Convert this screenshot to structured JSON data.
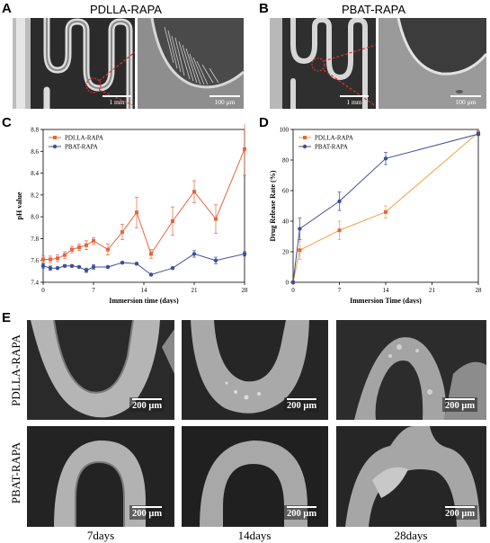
{
  "panels": {
    "A": {
      "letter": "A",
      "title": "PDLLA-RAPA",
      "scale_left": "1 mm",
      "scale_right": "100 μm"
    },
    "B": {
      "letter": "B",
      "title": "PBAT-RAPA",
      "scale_left": "1 mm",
      "scale_right": "100 μm"
    },
    "C": {
      "letter": "C"
    },
    "D": {
      "letter": "D"
    },
    "E": {
      "letter": "E",
      "rows": [
        "PDLLA-RAPA",
        "PBAT-RAPA"
      ],
      "cols": [
        "7days",
        "14days",
        "28days"
      ],
      "scale": "200 μm"
    }
  },
  "chart_data": [
    {
      "type": "line",
      "panel": "C",
      "xlabel": "Immersion time (days)",
      "ylabel": "pH value",
      "xlim": [
        0,
        28
      ],
      "ylim": [
        7.4,
        8.8
      ],
      "xticks": [
        0,
        7,
        14,
        21,
        28
      ],
      "yticks": [
        7.4,
        7.6,
        7.8,
        8.0,
        8.2,
        8.4,
        8.6,
        8.8
      ],
      "legend": "top-left",
      "series": [
        {
          "name": "PDLLA-RAPA",
          "color": "#e8643c",
          "x": [
            0,
            1,
            2,
            3,
            4,
            5,
            6,
            7,
            9,
            11,
            13,
            15,
            18,
            21,
            24,
            28
          ],
          "y": [
            7.61,
            7.61,
            7.62,
            7.65,
            7.7,
            7.72,
            7.74,
            7.78,
            7.7,
            7.86,
            8.04,
            7.66,
            7.96,
            8.23,
            7.98,
            8.62
          ],
          "err": [
            0.03,
            0.03,
            0.03,
            0.03,
            0.03,
            0.03,
            0.04,
            0.03,
            0.05,
            0.07,
            0.14,
            0.04,
            0.13,
            0.1,
            0.13,
            0.24
          ]
        },
        {
          "name": "PBAT-RAPA",
          "color": "#3d4f9a",
          "x": [
            0,
            1,
            2,
            3,
            4,
            5,
            6,
            7,
            9,
            11,
            13,
            15,
            18,
            21,
            24,
            28
          ],
          "y": [
            7.55,
            7.53,
            7.53,
            7.55,
            7.55,
            7.54,
            7.51,
            7.54,
            7.54,
            7.58,
            7.57,
            7.47,
            7.53,
            7.66,
            7.6,
            7.66
          ],
          "err": [
            0.02,
            0.02,
            0.01,
            0.01,
            0.01,
            0.01,
            0.02,
            0.02,
            0.01,
            0.01,
            0.01,
            0.01,
            0.01,
            0.03,
            0.03,
            0.02
          ]
        }
      ]
    },
    {
      "type": "line",
      "panel": "D",
      "xlabel": "Immersion Time (days)",
      "ylabel": "Drug Release Rate (%)",
      "xlim": [
        0,
        28
      ],
      "ylim": [
        0,
        100
      ],
      "xticks": [
        0,
        7,
        14,
        21,
        28
      ],
      "yticks": [
        0,
        20,
        40,
        60,
        80,
        100
      ],
      "legend": "top-left",
      "series": [
        {
          "name": "PDLLA-RAPA",
          "color": "#f0a03c",
          "marker_color": "#e8643c",
          "x": [
            0,
            1,
            7,
            14,
            28
          ],
          "y": [
            0,
            21,
            34,
            46,
            98
          ],
          "err": [
            0,
            6,
            6,
            4,
            1
          ]
        },
        {
          "name": "PBAT-RAPA",
          "color": "#3d4f9a",
          "x": [
            0,
            1,
            7,
            14,
            28
          ],
          "y": [
            0,
            35,
            53,
            81,
            97
          ],
          "err": [
            0,
            7,
            6,
            4,
            1
          ]
        }
      ]
    }
  ]
}
